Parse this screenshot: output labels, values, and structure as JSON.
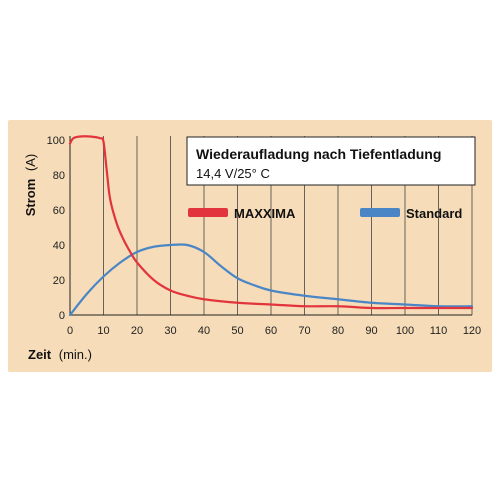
{
  "colors": {
    "background": "#f6dcb8",
    "panel_border": "#e8c49a",
    "grid": "#444444",
    "maxxima": "#e2343c",
    "standard": "#4a86c6"
  },
  "chart_data": {
    "type": "line",
    "title": "Wiederaufladung nach Tiefentladung",
    "subtitle": "14,4 V/25° C",
    "xlabel": "Zeit",
    "xlabel_unit": "(min.)",
    "ylabel": "Strom",
    "ylabel_unit": "(A)",
    "xlim": [
      0,
      120
    ],
    "ylim": [
      0,
      100
    ],
    "x_ticks": [
      "0",
      "10",
      "20",
      "30",
      "40",
      "50",
      "60",
      "70",
      "80",
      "90",
      "100",
      "110",
      "120"
    ],
    "y_ticks": [
      "0",
      "20",
      "40",
      "60",
      "80",
      "100"
    ],
    "grid": "vertical",
    "legend_position": "top-right",
    "series": [
      {
        "name": "MAXXIMA",
        "color": "#e2343c",
        "x": [
          0,
          1,
          3,
          6,
          9,
          10,
          11,
          12,
          14,
          16,
          18,
          20,
          25,
          30,
          35,
          40,
          50,
          60,
          70,
          80,
          90,
          100,
          110,
          120
        ],
        "y": [
          98,
          101,
          102,
          102,
          101,
          99,
          82,
          66,
          52,
          43,
          36,
          30,
          20,
          14,
          11,
          9,
          7,
          6,
          5,
          5,
          4,
          4,
          4,
          4
        ]
      },
      {
        "name": "Standard",
        "color": "#4a86c6",
        "x": [
          0,
          5,
          10,
          15,
          20,
          25,
          30,
          35,
          40,
          45,
          50,
          55,
          60,
          70,
          80,
          90,
          100,
          110,
          120
        ],
        "y": [
          0,
          12,
          22,
          30,
          36,
          39,
          40,
          40,
          36,
          28,
          21,
          17,
          14,
          11,
          9,
          7,
          6,
          5,
          5
        ]
      }
    ]
  }
}
